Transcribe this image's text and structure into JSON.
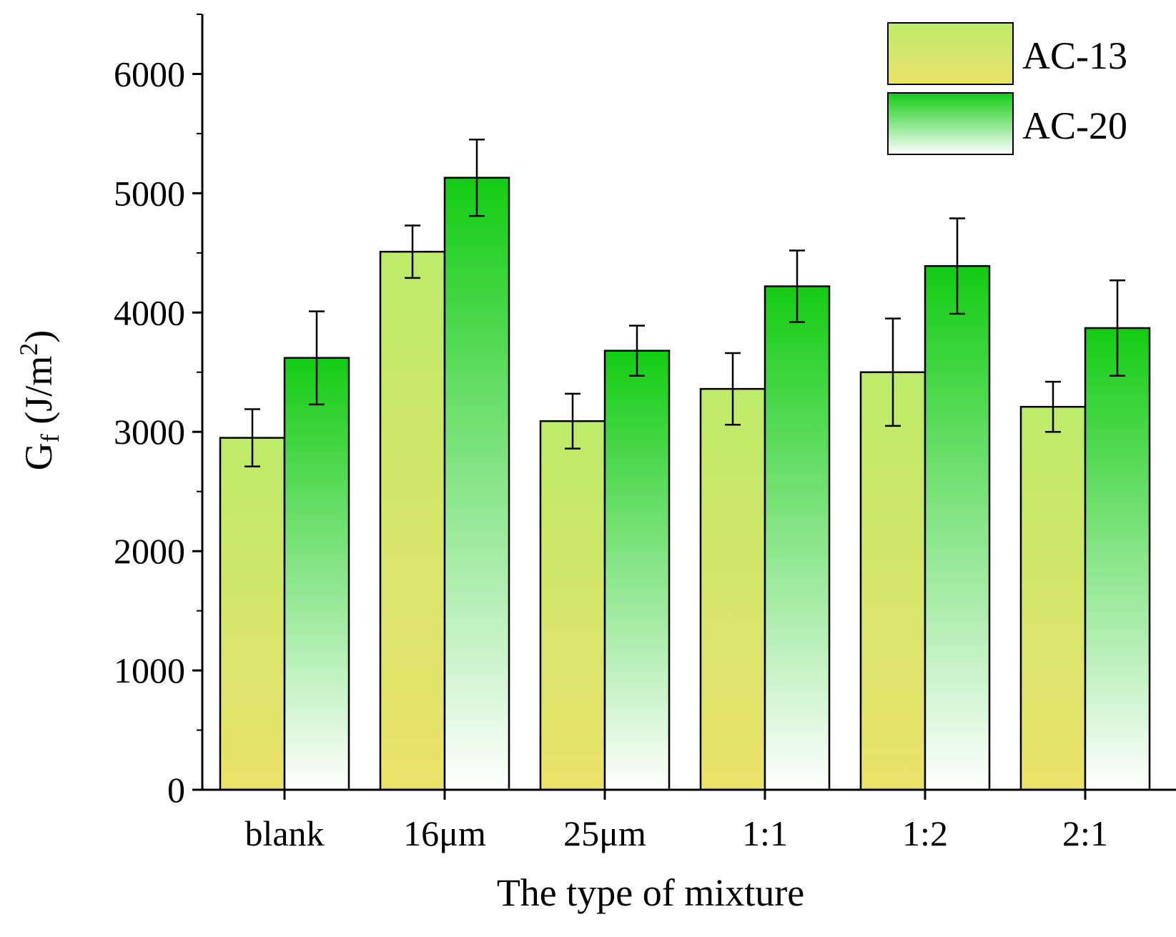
{
  "chart_data": {
    "type": "bar",
    "title": "",
    "xlabel": "The type of mixture",
    "ylabel": {
      "main": "G",
      "sub": "f",
      "unit": " (J/m",
      "sup": "2",
      "close": ")"
    },
    "ylim": [
      0,
      6500
    ],
    "yticks": [
      0,
      1000,
      2000,
      3000,
      4000,
      5000,
      6000
    ],
    "grid": false,
    "legend_position": "top-right",
    "categories": [
      "blank",
      "16μm",
      "25μm",
      "1:1",
      "1:2",
      "2:1"
    ],
    "series": [
      {
        "name": "AC-13",
        "values": [
          2950,
          4510,
          3090,
          3360,
          3500,
          3210
        ],
        "errors": [
          240,
          220,
          230,
          300,
          450,
          210
        ],
        "gradient": {
          "top": "#bdeb6a",
          "bottom": "#ece26a"
        }
      },
      {
        "name": "AC-20",
        "values": [
          3620,
          5130,
          3680,
          4220,
          4390,
          3870
        ],
        "errors": [
          390,
          320,
          210,
          300,
          400,
          400
        ],
        "gradient": {
          "top": "#13cc13",
          "bottom": "#ffffff"
        }
      }
    ]
  }
}
